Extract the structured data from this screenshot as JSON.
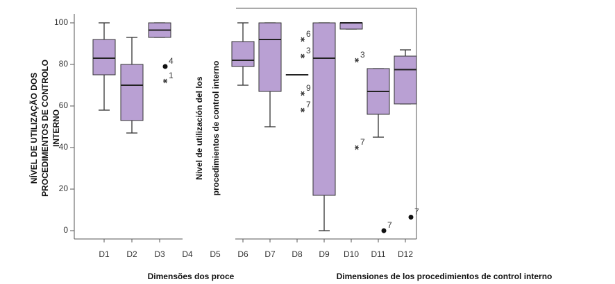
{
  "chart_data": [
    {
      "type": "box",
      "categories": [
        "D1",
        "D2",
        "D3",
        "D4",
        "D5"
      ],
      "ylabel_lines": [
        "NÍVEL DE UTILIZAÇÃO DOS",
        "PROCEDIMENTOS DE CONTROLO",
        "INTERNO"
      ],
      "xlabel": "Dimensões dos proce",
      "ylim": [
        -4,
        107
      ],
      "yticks": [
        0,
        20,
        40,
        60,
        80,
        100
      ],
      "color": "#b9a0d3",
      "boxes": [
        {
          "whisker_low": 58,
          "q1": 75,
          "median": 83,
          "q3": 92,
          "whisker_high": 100,
          "outliers": []
        },
        {
          "whisker_low": 47,
          "q1": 53,
          "median": 70,
          "q3": 80,
          "whisker_high": 93,
          "outliers": []
        },
        {
          "whisker_low": 93,
          "q1": 93,
          "median": 96.5,
          "q3": 100,
          "whisker_high": 100,
          "outliers": [
            {
              "value": 79,
              "label": "4",
              "marker": "dot"
            },
            {
              "value": 72,
              "label": "1",
              "marker": "star"
            }
          ]
        },
        null,
        null
      ]
    },
    {
      "type": "box",
      "categories": [
        "D6",
        "D7",
        "D8",
        "D9",
        "D10",
        "D11",
        "D12"
      ],
      "ylabel_lines": [
        "Nivel de utilización del los",
        "procedimientos de control interno"
      ],
      "xlabel": "Dimensiones de los procedimientos de control interno",
      "ylim": [
        -4,
        107
      ],
      "color": "#b9a0d3",
      "boxes": [
        {
          "whisker_low": 70,
          "q1": 79,
          "median": 82,
          "q3": 91,
          "whisker_high": 100,
          "outliers": []
        },
        {
          "whisker_low": 50,
          "q1": 67,
          "median": 92,
          "q3": 100,
          "whisker_high": 100,
          "outliers": []
        },
        {
          "whisker_low": 75,
          "q1": 75,
          "median": 75,
          "q3": 75,
          "whisker_high": 75,
          "outliers": [
            {
              "value": 92,
              "label": "6",
              "marker": "star"
            },
            {
              "value": 84,
              "label": "3",
              "marker": "star"
            },
            {
              "value": 66,
              "label": "9",
              "marker": "star"
            },
            {
              "value": 58,
              "label": "7",
              "marker": "star"
            }
          ]
        },
        {
          "whisker_low": 0,
          "q1": 17,
          "median": 83,
          "q3": 100,
          "whisker_high": 100,
          "outliers": []
        },
        {
          "whisker_low": 97,
          "q1": 97,
          "median": 100,
          "q3": 100,
          "whisker_high": 100,
          "outliers": [
            {
              "value": 82,
              "label": "3",
              "marker": "star"
            },
            {
              "value": 40,
              "label": "7",
              "marker": "star"
            }
          ]
        },
        {
          "whisker_low": 45,
          "q1": 56,
          "median": 67,
          "q3": 78,
          "whisker_high": 78,
          "outliers": [
            {
              "value": 0,
              "label": "7",
              "marker": "dot"
            }
          ]
        },
        {
          "whisker_low": 61,
          "q1": 61,
          "median": 77.5,
          "q3": 84,
          "whisker_high": 87,
          "outliers": [
            {
              "value": 6.5,
              "label": "7",
              "marker": "dot"
            }
          ]
        }
      ]
    }
  ]
}
